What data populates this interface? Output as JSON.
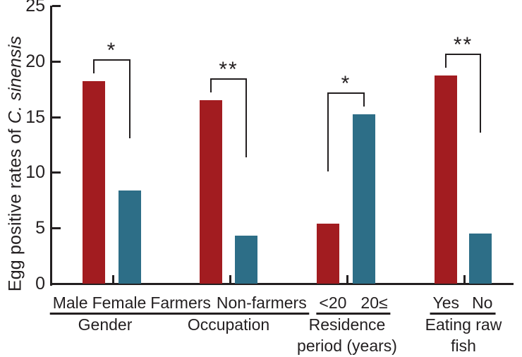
{
  "chart_data": {
    "type": "bar",
    "title": "",
    "ylabel_prefix": "Egg positive rates of ",
    "ylabel_italic": "C. sinensis",
    "xlabel": "",
    "ylim": [
      0,
      25
    ],
    "yticks": [
      0,
      5,
      10,
      15,
      20,
      25
    ],
    "grid": "off",
    "legend": "none",
    "colors": {
      "red_bar": "#a21c20",
      "blue_bar": "#2d6e87",
      "axis_and_text": "#231f20",
      "background": "#ffffff"
    },
    "groups": [
      {
        "caption_lines": [
          "Gender"
        ],
        "significance": "*",
        "bars": [
          {
            "label": "Male",
            "value": 18.2,
            "color": "#a21c20"
          },
          {
            "label": "Female",
            "value": 8.4,
            "color": "#2d6e87"
          }
        ]
      },
      {
        "caption_lines": [
          "Occupation"
        ],
        "significance": "**",
        "bars": [
          {
            "label": "Farmers",
            "value": 16.5,
            "color": "#a21c20"
          },
          {
            "label": "Non-farmers",
            "value": 4.3,
            "color": "#2d6e87"
          }
        ]
      },
      {
        "caption_lines": [
          "Residence",
          "period (years)"
        ],
        "significance": "*",
        "bars": [
          {
            "label": "<20",
            "value": 5.4,
            "color": "#a21c20"
          },
          {
            "label": "20≤",
            "value": 15.2,
            "color": "#2d6e87"
          }
        ]
      },
      {
        "caption_lines": [
          "Eating raw",
          "fish"
        ],
        "significance": "**",
        "bars": [
          {
            "label": "Yes",
            "value": 18.7,
            "color": "#a21c20"
          },
          {
            "label": "No",
            "value": 4.5,
            "color": "#2d6e87"
          }
        ]
      }
    ]
  }
}
